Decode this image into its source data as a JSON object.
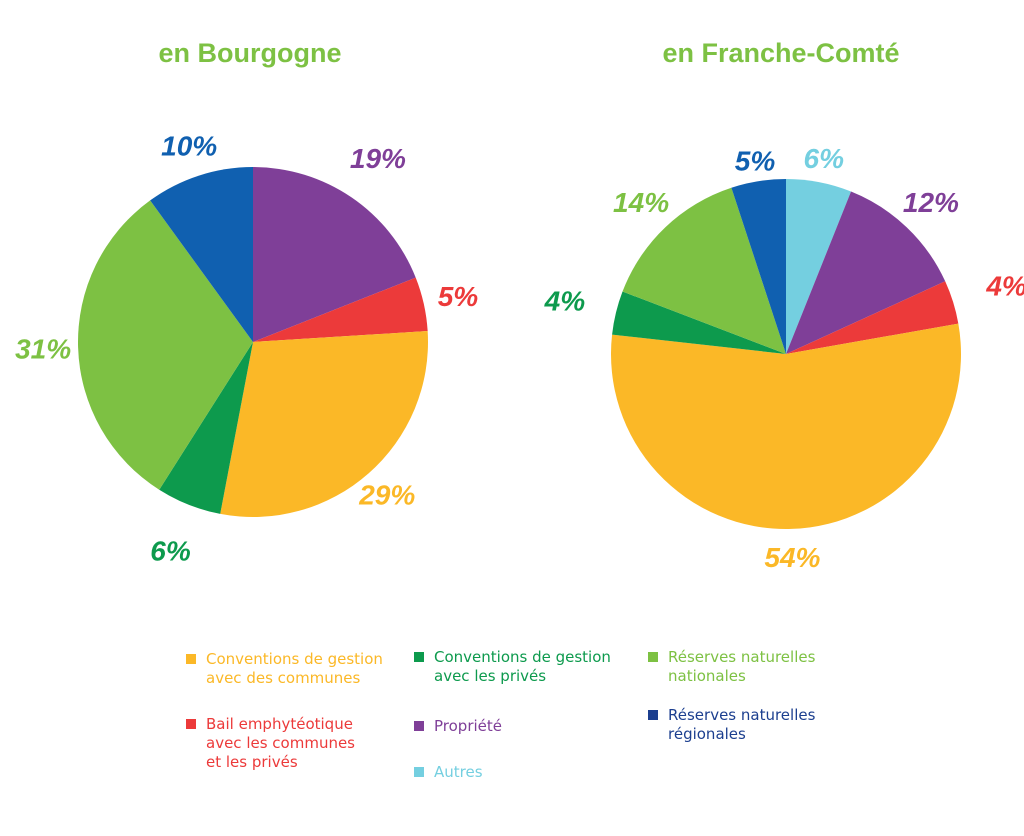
{
  "colors": {
    "title": "#7dc143",
    "conventions_communes": "#fbb827",
    "conventions_prives": "#0d9a4d",
    "reserves_nationales": "#7dc143",
    "bail": "#ec3a3a",
    "propriete": "#7f3f98",
    "reserves_regionales": "#1060b0",
    "autres": "#74cfe0"
  },
  "legend": [
    {
      "key": "conventions_communes",
      "label": "Conventions de gestion\navec des communes",
      "color": "#fbb827",
      "label_color": "#fbb827"
    },
    {
      "key": "conventions_prives",
      "label": "Conventions de gestion\navec les privés",
      "color": "#0d9a4d",
      "label_color": "#0d9a4d"
    },
    {
      "key": "reserves_nationales",
      "label": "Réserves naturelles\nnationales",
      "color": "#7dc143",
      "label_color": "#7dc143"
    },
    {
      "key": "bail",
      "label": "Bail emphytéotique\navec les communes\net les privés",
      "color": "#ec3a3a",
      "label_color": "#ec3a3a"
    },
    {
      "key": "propriete",
      "label": "Propriété",
      "color": "#7f3f98",
      "label_color": "#7f3f98"
    },
    {
      "key": "reserves_regionales",
      "label": "Réserves naturelles\nrégionales",
      "color": "#1c3f8f",
      "label_color": "#1c3f8f"
    },
    {
      "key": "autres",
      "label": "Autres",
      "color": "#74cfe0",
      "label_color": "#74cfe0"
    }
  ],
  "chart_data": [
    {
      "type": "pie",
      "title": "en Bourgogne",
      "slices": [
        {
          "category": "Propriété",
          "value": 19,
          "label": "19%",
          "color": "#7f3f98"
        },
        {
          "category": "Bail emphytéotique avec les communes et les privés",
          "value": 5,
          "label": "5%",
          "color": "#ec3a3a"
        },
        {
          "category": "Conventions de gestion avec des communes",
          "value": 29,
          "label": "29%",
          "color": "#fbb827"
        },
        {
          "category": "Conventions de gestion avec les privés",
          "value": 6,
          "label": "6%",
          "color": "#0d9a4d"
        },
        {
          "category": "Réserves naturelles nationales",
          "value": 31,
          "label": "31%",
          "color": "#7dc143"
        },
        {
          "category": "Réserves naturelles régionales",
          "value": 10,
          "label": "10%",
          "color": "#1060b0"
        }
      ]
    },
    {
      "type": "pie",
      "title": "en Franche-Comté",
      "slices": [
        {
          "category": "Autres",
          "value": 6,
          "label": "6%",
          "color": "#74cfe0"
        },
        {
          "category": "Propriété",
          "value": 12,
          "label": "12%",
          "color": "#7f3f98"
        },
        {
          "category": "Bail emphytéotique avec les communes et les privés",
          "value": 4,
          "label": "4%",
          "color": "#ec3a3a"
        },
        {
          "category": "Conventions de gestion avec des communes",
          "value": 54,
          "label": "54%",
          "color": "#fbb827"
        },
        {
          "category": "Conventions de gestion avec les privés",
          "value": 4,
          "label": "4%",
          "color": "#0d9a4d"
        },
        {
          "category": "Réserves naturelles nationales",
          "value": 14,
          "label": "14%",
          "color": "#7dc143"
        },
        {
          "category": "Réserves naturelles régionales",
          "value": 5,
          "label": "5%",
          "color": "#1060b0"
        }
      ]
    }
  ]
}
